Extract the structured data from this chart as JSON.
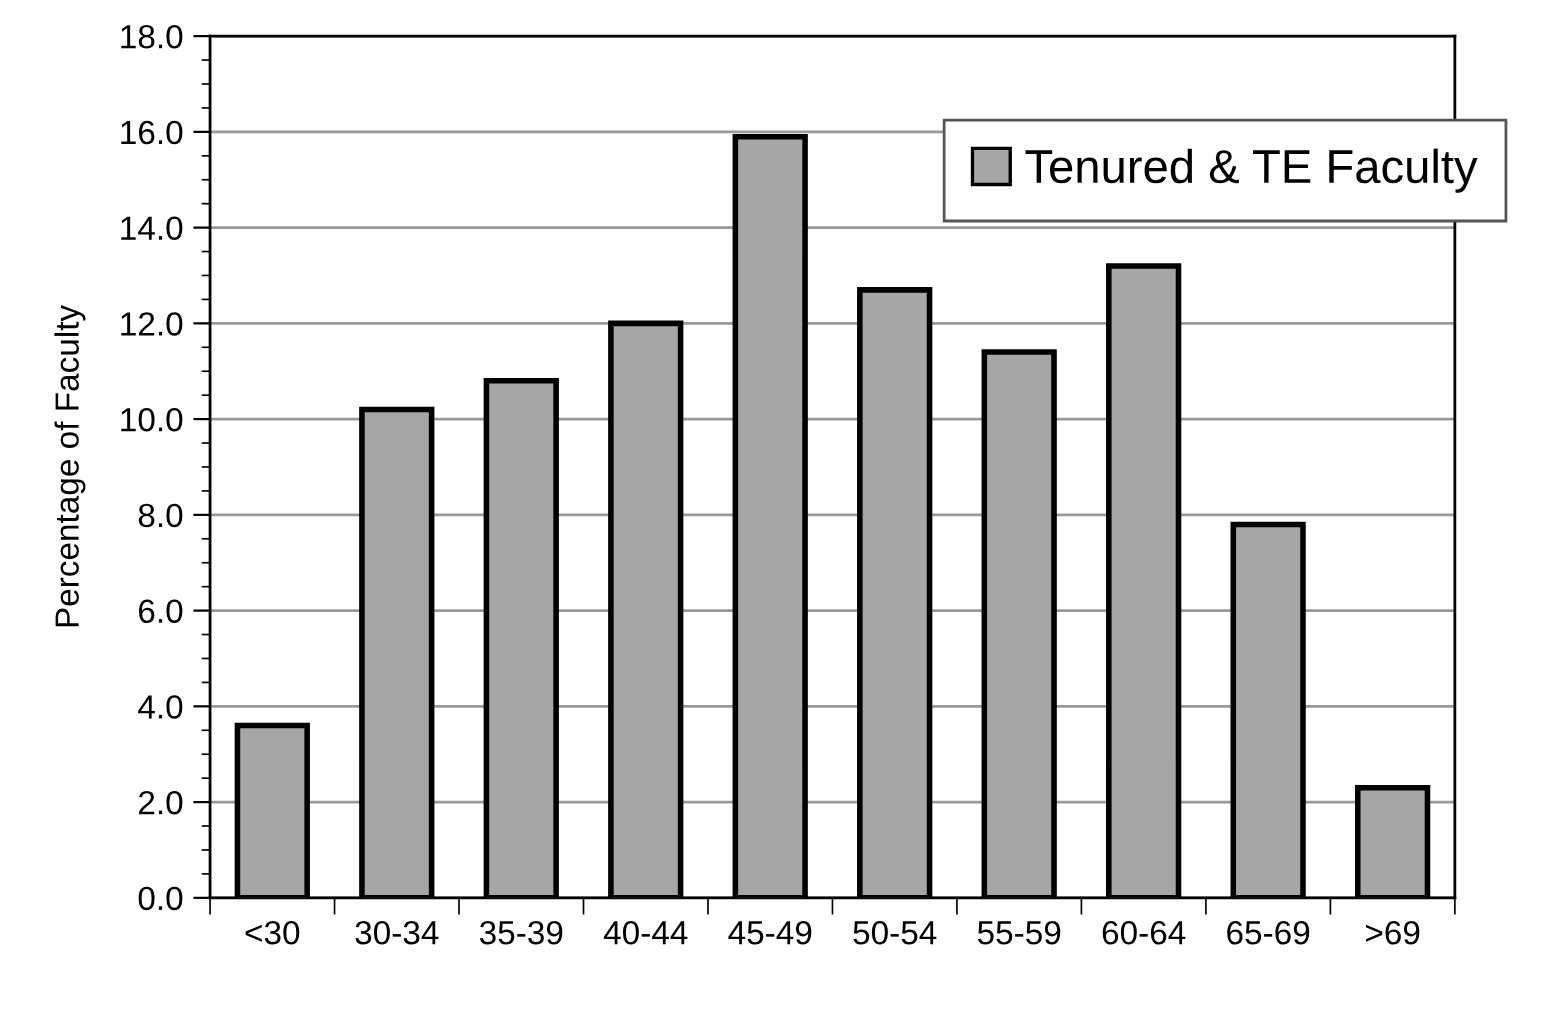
{
  "chart_data": {
    "type": "bar",
    "ylabel": "Percentage of Faculty",
    "categories": [
      "<30",
      "30-34",
      "35-39",
      "40-44",
      "45-49",
      "50-54",
      "55-59",
      "60-64",
      "65-69",
      ">69"
    ],
    "series": [
      {
        "name": "Tenured & TE Faculty",
        "color": "#a6a6a6",
        "values": [
          3.6,
          10.2,
          10.8,
          12.0,
          15.9,
          12.7,
          11.4,
          13.2,
          7.8,
          2.3
        ]
      }
    ],
    "ylim": [
      0,
      18
    ],
    "yticks": [
      {
        "value": 0,
        "label": "0.0"
      },
      {
        "value": 2,
        "label": "2.0"
      },
      {
        "value": 4,
        "label": "4.0"
      },
      {
        "value": 6,
        "label": "6.0"
      },
      {
        "value": 8,
        "label": "8.0"
      },
      {
        "value": 10,
        "label": "10.0"
      },
      {
        "value": 12,
        "label": "12.0"
      },
      {
        "value": 14,
        "label": "14.0"
      },
      {
        "value": 16,
        "label": "16.0"
      },
      {
        "value": 18,
        "label": "18.0"
      }
    ],
    "grid": "y",
    "legend": "top right"
  }
}
